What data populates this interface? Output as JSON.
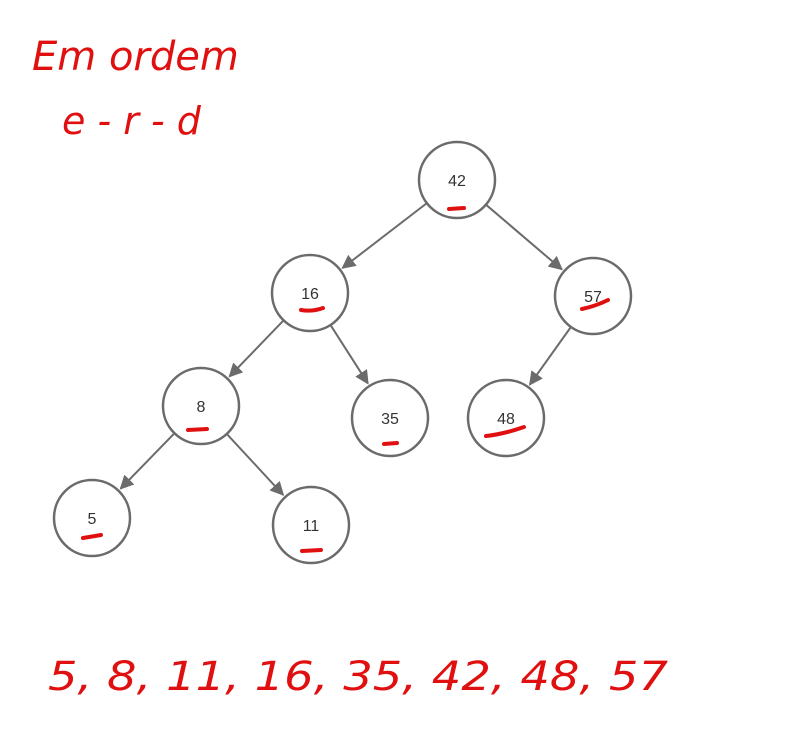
{
  "annotation": {
    "line1": "Em ordem",
    "line2": "e - r - d",
    "result": "5, 8, 11, 16, 35, 42, 48, 57"
  },
  "tree": {
    "nodes": [
      {
        "id": "n42",
        "label": "42"
      },
      {
        "id": "n16",
        "label": "16"
      },
      {
        "id": "n57",
        "label": "57"
      },
      {
        "id": "n8",
        "label": "8"
      },
      {
        "id": "n35",
        "label": "35"
      },
      {
        "id": "n48",
        "label": "48"
      },
      {
        "id": "n5",
        "label": "5"
      },
      {
        "id": "n11",
        "label": "11"
      }
    ],
    "edges": [
      [
        "n42",
        "n16"
      ],
      [
        "n42",
        "n57"
      ],
      [
        "n16",
        "n8"
      ],
      [
        "n16",
        "n35"
      ],
      [
        "n57",
        "n48"
      ],
      [
        "n8",
        "n5"
      ],
      [
        "n8",
        "n11"
      ]
    ]
  },
  "colors": {
    "node_stroke": "#6b6b6b",
    "edge": "#6b6b6b",
    "ink": "#e01010"
  }
}
